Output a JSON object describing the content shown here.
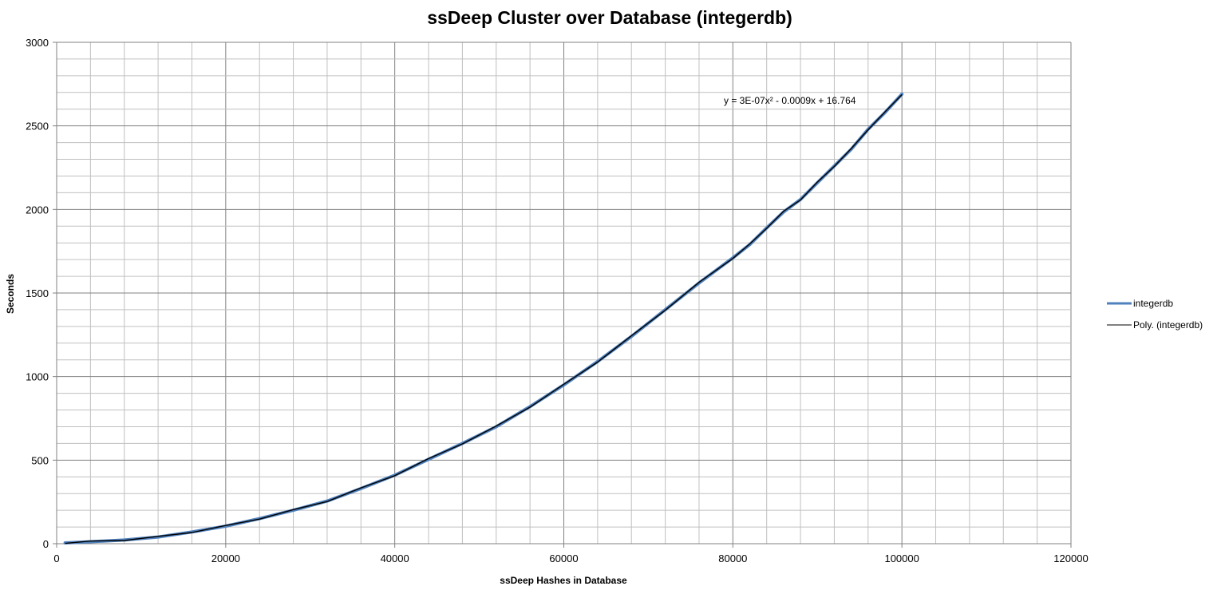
{
  "chart_data": {
    "type": "line",
    "title": "ssDeep Cluster over Database (integerdb)",
    "xlabel": "ssDeep Hashes in Database",
    "ylabel": "Seconds",
    "xlim": [
      0,
      120000
    ],
    "ylim": [
      0,
      3000
    ],
    "x_ticks": [
      "0",
      "20000",
      "40000",
      "60000",
      "80000",
      "100000",
      "120000"
    ],
    "y_ticks": [
      "0",
      "500",
      "1000",
      "1500",
      "2000",
      "2500",
      "3000"
    ],
    "grid": true,
    "legend_position": "right",
    "trendline_equation": "y = 3E-07x² - 0.0009x + 16.764",
    "trendline_coefficients": {
      "a": 3e-07,
      "b": -0.0009,
      "c": 16.764
    },
    "series": [
      {
        "name": "integerdb",
        "color": "#4f81bd",
        "x": [
          1000,
          4000,
          8000,
          12000,
          16000,
          20000,
          24000,
          28000,
          32000,
          36000,
          40000,
          44000,
          48000,
          52000,
          56000,
          60000,
          64000,
          68000,
          72000,
          76000,
          80000,
          82000,
          84000,
          86000,
          88000,
          90000,
          92000,
          94000,
          96000,
          98000,
          100000
        ],
        "values": [
          5,
          12,
          22,
          40,
          70,
          105,
          150,
          200,
          255,
          330,
          410,
          505,
          600,
          700,
          820,
          950,
          1090,
          1240,
          1400,
          1560,
          1710,
          1790,
          1890,
          1985,
          2060,
          2160,
          2260,
          2360,
          2480,
          2580,
          2690
        ]
      },
      {
        "name": "Poly. (integerdb)",
        "color": "#000000",
        "type": "polynomial-trendline",
        "x": [
          1000,
          5000,
          10000,
          15000,
          20000,
          25000,
          30000,
          35000,
          40000,
          45000,
          50000,
          55000,
          60000,
          65000,
          70000,
          75000,
          80000,
          85000,
          90000,
          95000,
          100000
        ],
        "values": [
          16.2,
          19.8,
          37.8,
          70.8,
          118.8,
          181.8,
          259.8,
          352.8,
          460.8,
          583.8,
          721.8,
          874.8,
          1042.8,
          1225.8,
          1423.8,
          1636.8,
          1864.8,
          2107.8,
          2365.8,
          2638.8,
          2926.8
        ]
      }
    ]
  }
}
